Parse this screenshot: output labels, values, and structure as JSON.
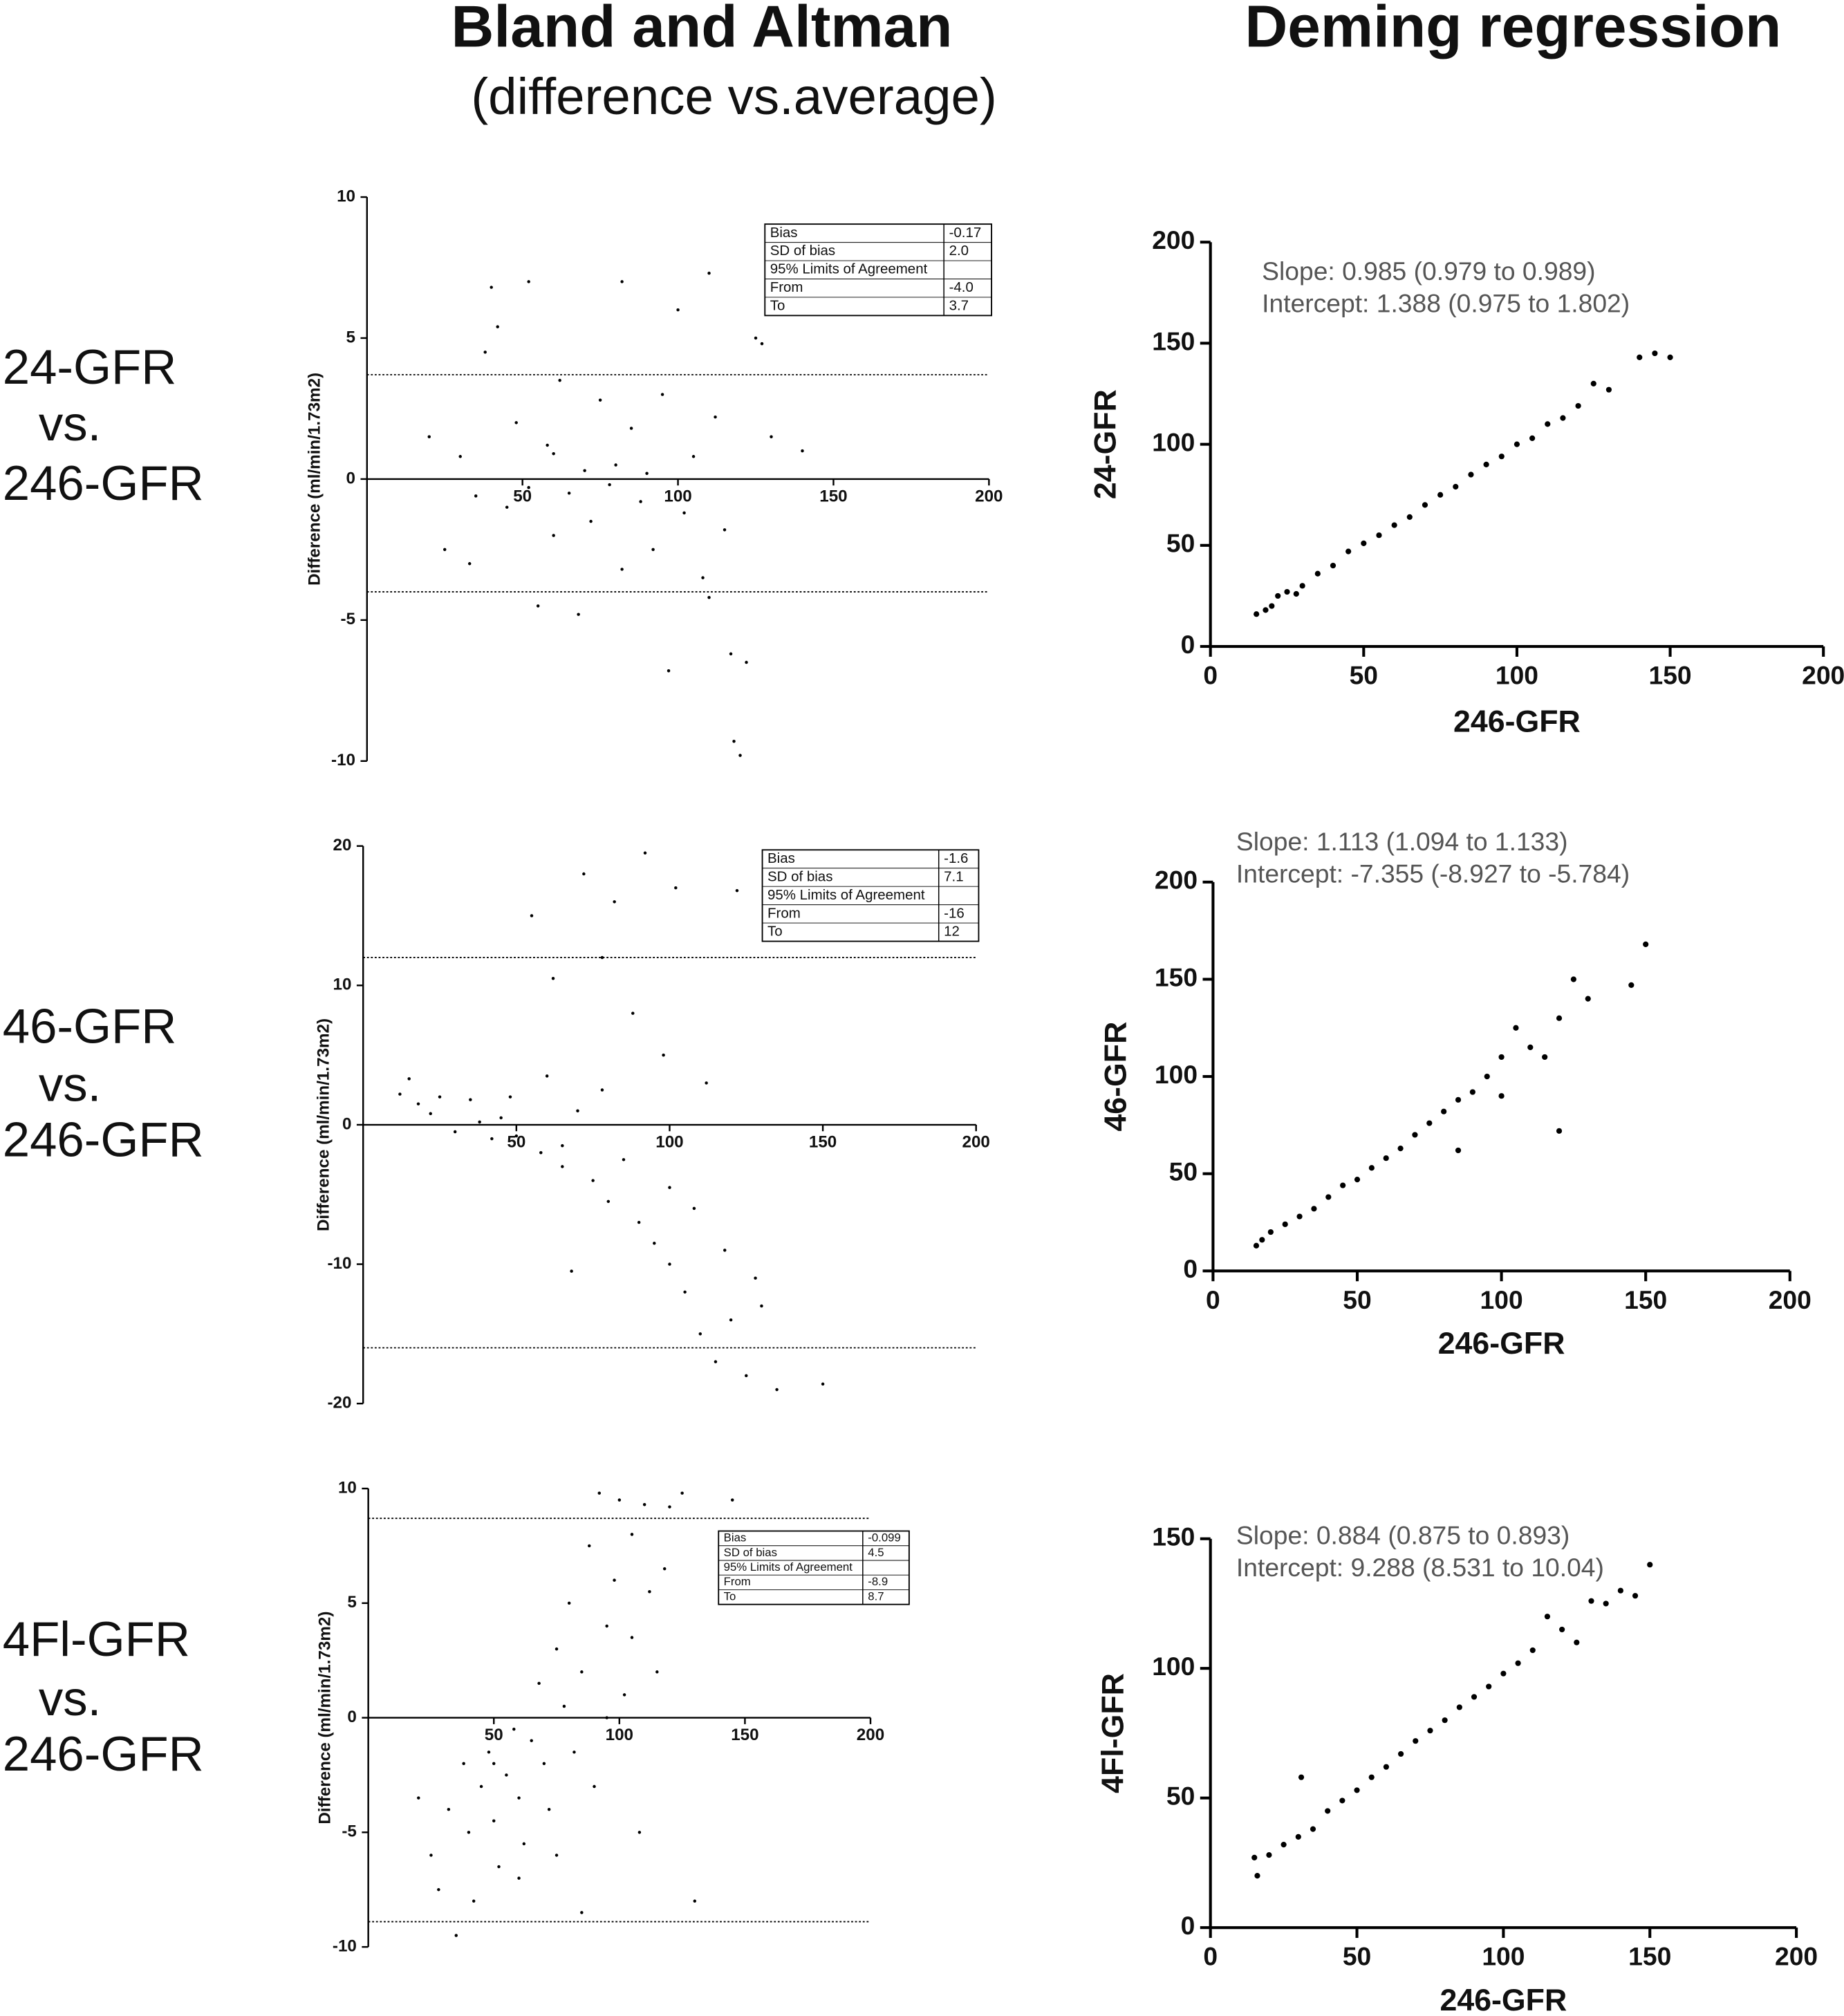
{
  "column_titles": {
    "bland_altman": {
      "title": "Bland and Altman",
      "subtitle": "(difference vs.average)"
    },
    "deming": {
      "title": "Deming regression"
    }
  },
  "row_labels": [
    [
      "24-GFR",
      "vs.",
      "246-GFR"
    ],
    [
      "46-GFR",
      "vs.",
      "246-GFR"
    ],
    [
      "4Fl-GFR",
      "vs.",
      "246-GFR"
    ]
  ],
  "chart_data": [
    {
      "type": "scatter",
      "ylabel": "Difference   (ml/min/1.73m2)",
      "x_axis_at_zero": true,
      "xlim": [
        0,
        200
      ],
      "ylim": [
        -10,
        10
      ],
      "xticks": [
        50,
        100,
        150,
        200
      ],
      "yticks": [
        -10,
        -5,
        0,
        5,
        10
      ],
      "color": "#000000",
      "x": [
        20,
        25,
        30,
        33,
        38,
        40,
        42,
        45,
        48,
        52,
        55,
        58,
        60,
        62,
        65,
        68,
        70,
        72,
        75,
        78,
        80,
        82,
        85,
        88,
        90,
        92,
        95,
        97,
        100,
        102,
        105,
        108,
        110,
        112,
        115,
        117,
        118,
        120,
        122,
        125,
        127,
        130,
        140,
        52,
        82,
        110,
        35,
        60
      ],
      "y": [
        1.5,
        -2.5,
        0.8,
        -3.0,
        4.5,
        6.8,
        5.4,
        -1.0,
        2.0,
        7.0,
        -4.5,
        1.2,
        -2.0,
        3.5,
        -0.5,
        -4.8,
        0.3,
        -1.5,
        2.8,
        -0.2,
        0.5,
        -3.2,
        1.8,
        -0.8,
        0.2,
        -2.5,
        3.0,
        -6.8,
        6.0,
        -1.2,
        0.8,
        -3.5,
        7.3,
        2.2,
        -1.8,
        -6.2,
        -9.3,
        -9.8,
        -6.5,
        5.0,
        4.8,
        1.5,
        1.0,
        -0.3,
        7.0,
        -4.2,
        -0.6,
        0.9
      ],
      "table": {
        "rows": [
          {
            "name": "Bias",
            "value": -0.17
          },
          {
            "name": "SD of bias",
            "value": 2.0,
            "label": "2.0"
          },
          {
            "name": "95% Limits of Agreement"
          },
          {
            "name": "From",
            "value": -4.0,
            "label": "-4.0"
          },
          {
            "name": "To",
            "value": 3.7
          }
        ]
      }
    },
    {
      "type": "scatter",
      "xlabel": "246-GFR",
      "ylabel": "24-GFR",
      "annotations": [
        "Slope: 0.985 (0.979 to 0.989)",
        "Intercept: 1.388 (0.975 to 1.802)"
      ],
      "xlim": [
        0,
        200
      ],
      "ylim": [
        0,
        200
      ],
      "xticks": [
        0,
        50,
        100,
        150,
        200
      ],
      "yticks": [
        0,
        50,
        100,
        150,
        200
      ],
      "color": "#000000",
      "x": [
        15,
        18,
        20,
        22,
        25,
        28,
        30,
        35,
        40,
        45,
        50,
        55,
        60,
        65,
        70,
        75,
        80,
        85,
        90,
        95,
        100,
        105,
        110,
        115,
        120,
        125,
        130,
        140,
        145,
        150
      ],
      "y": [
        16,
        18,
        20,
        25,
        27,
        26,
        30,
        36,
        40,
        47,
        51,
        55,
        60,
        64,
        70,
        75,
        79,
        85,
        90,
        94,
        100,
        103,
        110,
        113,
        119,
        130,
        127,
        143,
        145,
        143
      ]
    },
    {
      "type": "scatter",
      "ylabel": "Difference (ml/min/1.73m2)",
      "x_axis_at_zero": true,
      "xlim": [
        0,
        200
      ],
      "ylim": [
        -20,
        20
      ],
      "xticks": [
        50,
        100,
        150,
        200
      ],
      "yticks": [
        -20,
        -10,
        0,
        10,
        20
      ],
      "color": "#000000",
      "x": [
        12,
        15,
        18,
        22,
        25,
        30,
        35,
        38,
        42,
        45,
        48,
        50,
        55,
        58,
        60,
        62,
        65,
        68,
        70,
        72,
        75,
        78,
        80,
        82,
        85,
        88,
        90,
        92,
        95,
        98,
        100,
        102,
        105,
        108,
        110,
        112,
        115,
        118,
        120,
        122,
        125,
        128,
        130,
        135,
        150,
        65,
        100,
        78
      ],
      "y": [
        2.2,
        3.3,
        1.5,
        0.8,
        2.0,
        -0.5,
        1.8,
        0.2,
        -1.0,
        0.5,
        2.0,
        -0.8,
        15,
        -2.0,
        3.5,
        10.5,
        -3.0,
        -10.5,
        1.0,
        18,
        -4.0,
        12,
        -5.5,
        16,
        -2.5,
        8,
        -7.0,
        19.5,
        -8.5,
        5,
        -10.0,
        17,
        -12,
        -6,
        -15,
        3,
        -17,
        -9,
        -14,
        16.8,
        -18,
        -11,
        -13,
        -19,
        -18.6,
        -1.5,
        -4.5,
        2.5
      ],
      "table": {
        "rows": [
          {
            "name": "Bias",
            "value": -1.6
          },
          {
            "name": "SD of bias",
            "value": 7.1
          },
          {
            "name": "95% Limits of Agreement"
          },
          {
            "name": "From",
            "value": -16
          },
          {
            "name": "To",
            "value": 12
          }
        ]
      }
    },
    {
      "type": "scatter",
      "xlabel": "246-GFR",
      "ylabel": "46-GFR",
      "annotations": [
        "Slope: 1.113 (1.094 to 1.133)",
        "Intercept: -7.355 (-8.927 to -5.784)"
      ],
      "xlim": [
        0,
        200
      ],
      "ylim": [
        0,
        200
      ],
      "xticks": [
        0,
        50,
        100,
        150,
        200
      ],
      "yticks": [
        0,
        50,
        100,
        150,
        200
      ],
      "color": "#000000",
      "x": [
        15,
        17,
        20,
        25,
        30,
        35,
        40,
        45,
        50,
        55,
        60,
        65,
        70,
        75,
        80,
        85,
        85,
        90,
        95,
        100,
        100,
        105,
        110,
        115,
        120,
        120,
        125,
        130,
        145,
        150
      ],
      "y": [
        13,
        16,
        20,
        24,
        28,
        32,
        38,
        44,
        47,
        53,
        58,
        63,
        70,
        76,
        82,
        88,
        62,
        92,
        100,
        110,
        90,
        125,
        115,
        110,
        130,
        72,
        150,
        140,
        147,
        168
      ]
    },
    {
      "type": "scatter",
      "ylabel": "Difference (ml/min/1.73m2)",
      "x_axis_at_zero": true,
      "xlim": [
        0,
        200
      ],
      "ylim": [
        -10,
        10
      ],
      "xticks": [
        50,
        100,
        150,
        200
      ],
      "yticks": [
        -10,
        -5,
        0,
        5,
        10
      ],
      "color": "#000000",
      "x": [
        20,
        25,
        28,
        32,
        35,
        38,
        40,
        42,
        45,
        48,
        50,
        52,
        55,
        58,
        60,
        62,
        65,
        68,
        70,
        72,
        75,
        78,
        80,
        82,
        85,
        88,
        90,
        92,
        95,
        98,
        100,
        102,
        105,
        108,
        110,
        112,
        115,
        118,
        120,
        125,
        130,
        145,
        60,
        75,
        85,
        95,
        105,
        50
      ],
      "y": [
        -3.5,
        -6.0,
        -7.5,
        -4.0,
        -9.5,
        -2.0,
        -5.0,
        -8.0,
        -3.0,
        -1.5,
        -4.5,
        -6.5,
        -2.5,
        -0.5,
        -3.5,
        -5.5,
        -1.0,
        1.5,
        -2.0,
        -4.0,
        3.0,
        0.5,
        5.0,
        -1.5,
        2.0,
        7.5,
        -3.0,
        9.8,
        4.0,
        6.0,
        9.5,
        1.0,
        3.5,
        -5.0,
        9.3,
        5.5,
        2.0,
        6.5,
        9.2,
        9.8,
        -8.0,
        9.5,
        -7.0,
        -6.0,
        -8.5,
        0.0,
        8.0,
        -2.0
      ],
      "table": {
        "rows": [
          {
            "name": "Bias",
            "value": -0.099
          },
          {
            "name": "SD of bias",
            "value": 4.5
          },
          {
            "name": "95% Limits of Agreement"
          },
          {
            "name": "From",
            "value": -8.9
          },
          {
            "name": "To",
            "value": 8.7
          }
        ]
      }
    },
    {
      "type": "scatter",
      "xlabel": "246-GFR",
      "ylabel": "4Fl-GFR",
      "annotations": [
        "Slope: 0.884 (0.875 to 0.893)",
        "Intercept: 9.288 (8.531 to 10.04)"
      ],
      "xlim": [
        0,
        200
      ],
      "ylim": [
        0,
        150
      ],
      "xticks": [
        0,
        50,
        100,
        150,
        200
      ],
      "yticks": [
        0,
        50,
        100,
        150
      ],
      "color": "#000000",
      "x": [
        15,
        16,
        20,
        25,
        30,
        31,
        35,
        40,
        45,
        50,
        55,
        60,
        65,
        70,
        75,
        80,
        85,
        90,
        95,
        100,
        105,
        110,
        115,
        120,
        125,
        130,
        135,
        140,
        145,
        150
      ],
      "y": [
        27,
        20,
        28,
        32,
        35,
        58,
        38,
        45,
        49,
        53,
        58,
        62,
        67,
        72,
        76,
        80,
        85,
        89,
        93,
        98,
        102,
        107,
        120,
        115,
        110,
        126,
        125,
        130,
        128,
        140
      ]
    }
  ]
}
